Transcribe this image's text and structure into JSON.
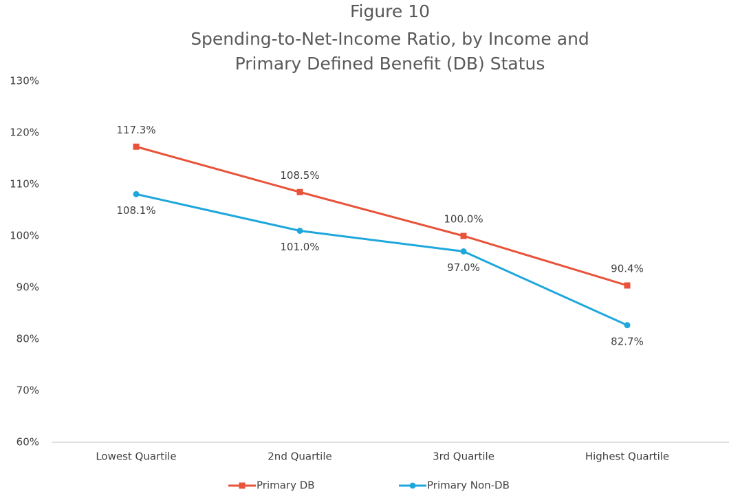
{
  "chart_data": {
    "type": "line",
    "title": "Figure 10",
    "subtitle": [
      "Spending-to-Net-Income Ratio, by Income and",
      "Primary Defined Benefit (DB) Status"
    ],
    "categories": [
      "Lowest Quartile",
      "2nd Quartile",
      "3rd Quartile",
      "Highest Quartile"
    ],
    "series": [
      {
        "name": "Primary DB",
        "color": "#e8533a",
        "marker": "square",
        "label_position": "above",
        "values": [
          117.3,
          108.5,
          100.0,
          90.4
        ],
        "value_labels": [
          "117.3%",
          "108.5%",
          "100.0%",
          "90.4%"
        ]
      },
      {
        "name": "Primary Non-DB",
        "color": "#1ea7dc",
        "marker": "circle",
        "label_position": "below",
        "values": [
          108.1,
          101.0,
          97.0,
          82.7
        ],
        "value_labels": [
          "108.1%",
          "101.0%",
          "97.0%",
          "82.7%"
        ]
      }
    ],
    "ylim": [
      60,
      130
    ],
    "yticks": [
      {
        "value": 60,
        "label": "60%"
      },
      {
        "value": 70,
        "label": "70%"
      },
      {
        "value": 80,
        "label": "80%"
      },
      {
        "value": 90,
        "label": "90%"
      },
      {
        "value": 100,
        "label": "100%"
      },
      {
        "value": 110,
        "label": "110%"
      },
      {
        "value": 120,
        "label": "120%"
      },
      {
        "value": 130,
        "label": "130%"
      }
    ],
    "grid": false,
    "legend": "bottom"
  }
}
